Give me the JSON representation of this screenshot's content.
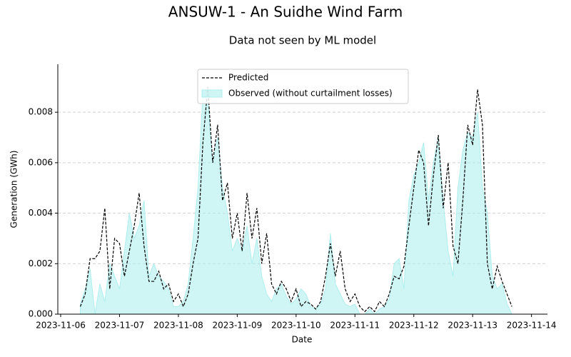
{
  "chart_data": {
    "type": "line",
    "title": "ANSUW-1 - An Suidhe Wind Farm",
    "subtitle": "Data not seen by ML model",
    "x_label": "Date",
    "y_label": "Generation (GWh)",
    "x": [
      "2023-11-06 08:00",
      "2023-11-06 10:00",
      "2023-11-06 12:00",
      "2023-11-06 14:00",
      "2023-11-06 16:00",
      "2023-11-06 18:00",
      "2023-11-06 20:00",
      "2023-11-06 22:00",
      "2023-11-07 00:00",
      "2023-11-07 02:00",
      "2023-11-07 04:00",
      "2023-11-07 06:00",
      "2023-11-07 08:00",
      "2023-11-07 10:00",
      "2023-11-07 12:00",
      "2023-11-07 14:00",
      "2023-11-07 16:00",
      "2023-11-07 18:00",
      "2023-11-07 20:00",
      "2023-11-07 22:00",
      "2023-11-08 00:00",
      "2023-11-08 02:00",
      "2023-11-08 04:00",
      "2023-11-08 06:00",
      "2023-11-08 08:00",
      "2023-11-08 10:00",
      "2023-11-08 12:00",
      "2023-11-08 14:00",
      "2023-11-08 16:00",
      "2023-11-08 18:00",
      "2023-11-08 20:00",
      "2023-11-08 22:00",
      "2023-11-09 00:00",
      "2023-11-09 02:00",
      "2023-11-09 04:00",
      "2023-11-09 06:00",
      "2023-11-09 08:00",
      "2023-11-09 10:00",
      "2023-11-09 12:00",
      "2023-11-09 14:00",
      "2023-11-09 16:00",
      "2023-11-09 18:00",
      "2023-11-09 20:00",
      "2023-11-09 22:00",
      "2023-11-10 00:00",
      "2023-11-10 02:00",
      "2023-11-10 04:00",
      "2023-11-10 06:00",
      "2023-11-10 08:00",
      "2023-11-10 10:00",
      "2023-11-10 12:00",
      "2023-11-10 14:00",
      "2023-11-10 16:00",
      "2023-11-10 18:00",
      "2023-11-10 20:00",
      "2023-11-10 22:00",
      "2023-11-11 00:00",
      "2023-11-11 02:00",
      "2023-11-11 04:00",
      "2023-11-11 06:00",
      "2023-11-11 08:00",
      "2023-11-11 10:00",
      "2023-11-11 12:00",
      "2023-11-11 14:00",
      "2023-11-11 16:00",
      "2023-11-11 18:00",
      "2023-11-11 20:00",
      "2023-11-11 22:00",
      "2023-11-12 00:00",
      "2023-11-12 02:00",
      "2023-11-12 04:00",
      "2023-11-12 06:00",
      "2023-11-12 08:00",
      "2023-11-12 10:00",
      "2023-11-12 12:00",
      "2023-11-12 14:00",
      "2023-11-12 16:00",
      "2023-11-12 18:00",
      "2023-11-12 20:00",
      "2023-11-12 22:00",
      "2023-11-13 00:00",
      "2023-11-13 02:00",
      "2023-11-13 04:00",
      "2023-11-13 06:00",
      "2023-11-13 08:00",
      "2023-11-13 10:00",
      "2023-11-13 12:00",
      "2023-11-13 14:00",
      "2023-11-13 16:00"
    ],
    "series": [
      {
        "name": "Predicted",
        "color": "#000000",
        "style": "dashed",
        "values": [
          0.0003,
          0.0008,
          0.0022,
          0.0022,
          0.0025,
          0.0042,
          0.001,
          0.003,
          0.0028,
          0.0015,
          0.0025,
          0.0035,
          0.0048,
          0.0027,
          0.0013,
          0.0013,
          0.0017,
          0.001,
          0.0012,
          0.0005,
          0.0008,
          0.0003,
          0.0008,
          0.002,
          0.003,
          0.0068,
          0.009,
          0.006,
          0.0075,
          0.0045,
          0.0052,
          0.003,
          0.004,
          0.0025,
          0.0048,
          0.003,
          0.0042,
          0.002,
          0.0032,
          0.0012,
          0.0008,
          0.0013,
          0.001,
          0.0005,
          0.001,
          0.0003,
          0.0005,
          0.0004,
          0.0002,
          0.0005,
          0.0015,
          0.0028,
          0.0015,
          0.0025,
          0.001,
          0.0005,
          0.0008,
          0.0003,
          0.0001,
          0.0003,
          0.0001,
          0.0005,
          0.0003,
          0.0008,
          0.0015,
          0.0014,
          0.0019,
          0.0035,
          0.005,
          0.0065,
          0.006,
          0.0035,
          0.0055,
          0.0071,
          0.0042,
          0.006,
          0.0027,
          0.002,
          0.0045,
          0.0075,
          0.0067,
          0.0089,
          0.0075,
          0.002,
          0.001,
          0.0019,
          0.0013,
          0.0008,
          0.0003
        ]
      },
      {
        "name": "Observed (without curtailment losses)",
        "color": "#afeeee",
        "style": "area",
        "values": [
          0.0004,
          0.001,
          0.0018,
          0,
          0.0012,
          0.0005,
          0.002,
          0.0015,
          0.001,
          0.0025,
          0.004,
          0.003,
          0.0035,
          0.0045,
          0.0015,
          0.002,
          0.0015,
          0.0013,
          0.001,
          0.0003,
          0.0003,
          0.0005,
          0.0012,
          0.003,
          0.005,
          0.0088,
          0.0085,
          0.006,
          0.007,
          0.005,
          0.004,
          0.0025,
          0.003,
          0.0025,
          0.0035,
          0.002,
          0.003,
          0.0015,
          0.0008,
          0.0005,
          0.001,
          0.0012,
          0.0007,
          0.0004,
          0.0006,
          0.001,
          0.0008,
          0.0003,
          0.0002,
          0.0004,
          0.001,
          0.0032,
          0.0012,
          0.0008,
          0.0004,
          0.0003,
          0.0004,
          0,
          0,
          0.0002,
          0,
          0.0002,
          0.0003,
          0.0006,
          0.002,
          0.0022,
          0.001,
          0.0045,
          0.0055,
          0.006,
          0.0068,
          0.0045,
          0.006,
          0.007,
          0.0045,
          0.0025,
          0.0015,
          0.005,
          0.0065,
          0.0072,
          0.007,
          0.008,
          0.005,
          0.004,
          0.0015,
          0.001,
          0.0012,
          0.0004,
          0
        ]
      }
    ],
    "xlim": [
      "2023-11-05 22:50",
      "2023-11-14 06:30"
    ],
    "xticks": [
      "2023-11-06",
      "2023-11-07",
      "2023-11-08",
      "2023-11-09",
      "2023-11-10",
      "2023-11-11",
      "2023-11-12",
      "2023-11-13",
      "2023-11-14"
    ],
    "ylim": [
      0,
      0.0099
    ],
    "yticks": [
      {
        "value": 0,
        "label": "0.000"
      },
      {
        "value": 0.002,
        "label": "0.002"
      },
      {
        "value": 0.004,
        "label": "0.004"
      },
      {
        "value": 0.006,
        "label": "0.006"
      },
      {
        "value": 0.008,
        "label": "0.008"
      }
    ],
    "grid": true,
    "legend": "upper center"
  }
}
